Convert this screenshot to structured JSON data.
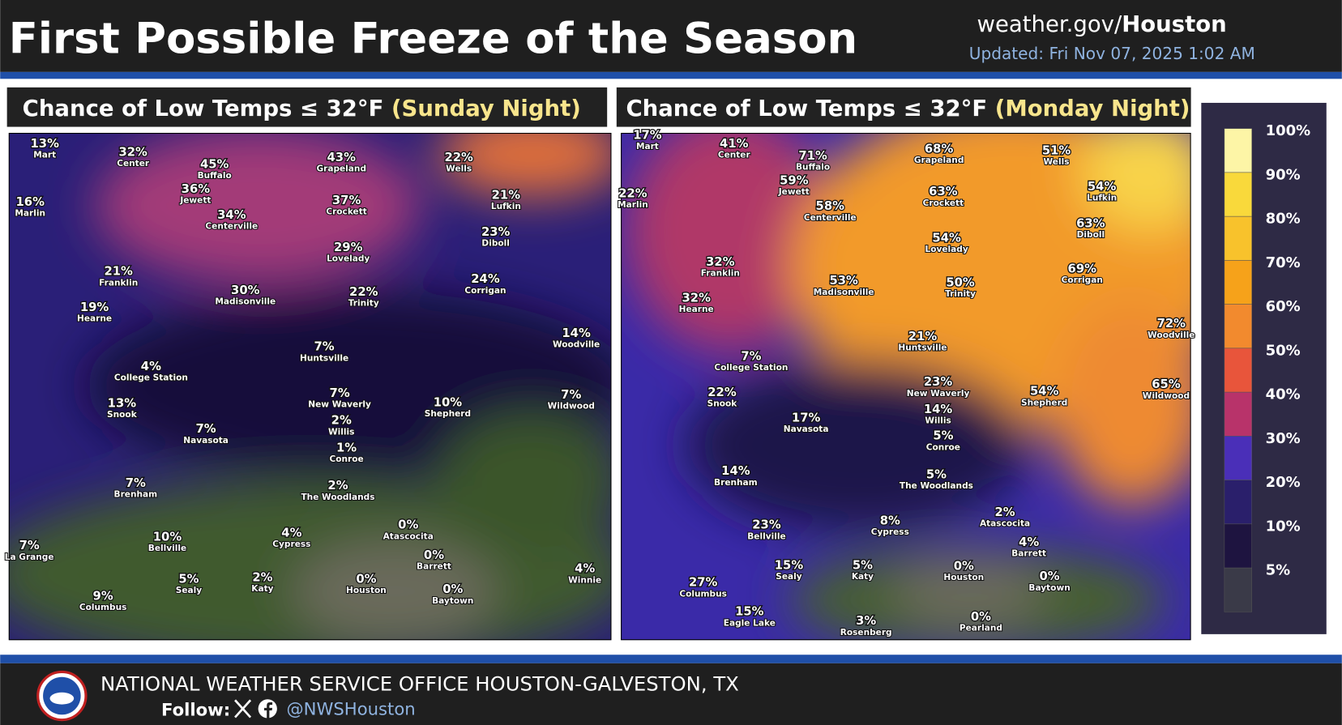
{
  "header": {
    "title": "First Possible Freeze of the Season",
    "site": "weather.gov/",
    "site_bold": "Houston",
    "updated": "Updated: Fri Nov 07, 2025 1:02 AM"
  },
  "panels": [
    {
      "title": "Chance of Low Temps ≤ 32°F",
      "period": "(Sunday Night)",
      "labels": [
        {
          "value": "13%",
          "place": "Mart"
        },
        {
          "value": "32%",
          "place": "Center"
        },
        {
          "value": "45%",
          "place": "Buffalo"
        },
        {
          "value": "43%",
          "place": "Grapeland"
        },
        {
          "value": "22%",
          "place": "Wells"
        },
        {
          "value": "36%",
          "place": "Jewett"
        },
        {
          "value": "16%",
          "place": "Marlin"
        },
        {
          "value": "37%",
          "place": "Crockett"
        },
        {
          "value": "21%",
          "place": "Lufkin"
        },
        {
          "value": "34%",
          "place": "Centerville"
        },
        {
          "value": "23%",
          "place": "Diboll"
        },
        {
          "value": "29%",
          "place": "Lovelady"
        },
        {
          "value": "21%",
          "place": "Franklin"
        },
        {
          "value": "24%",
          "place": "Corrigan"
        },
        {
          "value": "30%",
          "place": "Madisonville"
        },
        {
          "value": "22%",
          "place": "Trinity"
        },
        {
          "value": "19%",
          "place": "Hearne"
        },
        {
          "value": "14%",
          "place": "Woodville"
        },
        {
          "value": "7%",
          "place": "Huntsville"
        },
        {
          "value": "4%",
          "place": "College Station"
        },
        {
          "value": "7%",
          "place": "New Waverly"
        },
        {
          "value": "10%",
          "place": "Shepherd"
        },
        {
          "value": "7%",
          "place": "Wildwood"
        },
        {
          "value": "13%",
          "place": "Snook"
        },
        {
          "value": "2%",
          "place": "Willis"
        },
        {
          "value": "7%",
          "place": "Navasota"
        },
        {
          "value": "1%",
          "place": "Conroe"
        },
        {
          "value": "7%",
          "place": "Brenham"
        },
        {
          "value": "2%",
          "place": "The Woodlands"
        },
        {
          "value": "0%",
          "place": "Atascocita"
        },
        {
          "value": "4%",
          "place": "Cypress"
        },
        {
          "value": "10%",
          "place": "Bellville"
        },
        {
          "value": "0%",
          "place": "Barrett"
        },
        {
          "value": "2%",
          "place": "Katy"
        },
        {
          "value": "5%",
          "place": "Sealy"
        },
        {
          "value": "0%",
          "place": "Houston"
        },
        {
          "value": "4%",
          "place": "Winnie"
        },
        {
          "value": "0%",
          "place": "Baytown"
        },
        {
          "value": "9%",
          "place": "Columbus"
        },
        {
          "value": "7%",
          "place": "La Grange"
        }
      ]
    },
    {
      "title": "Chance of Low Temps ≤ 32°F",
      "period": "(Monday Night)",
      "labels": [
        {
          "value": "17%",
          "place": "Mart"
        },
        {
          "value": "41%",
          "place": "Center"
        },
        {
          "value": "71%",
          "place": "Buffalo"
        },
        {
          "value": "68%",
          "place": "Grapeland"
        },
        {
          "value": "51%",
          "place": "Wells"
        },
        {
          "value": "22%",
          "place": "Marlin"
        },
        {
          "value": "59%",
          "place": "Jewett"
        },
        {
          "value": "58%",
          "place": "Centerville"
        },
        {
          "value": "63%",
          "place": "Crockett"
        },
        {
          "value": "54%",
          "place": "Lufkin"
        },
        {
          "value": "63%",
          "place": "Diboll"
        },
        {
          "value": "54%",
          "place": "Lovelady"
        },
        {
          "value": "32%",
          "place": "Franklin"
        },
        {
          "value": "69%",
          "place": "Corrigan"
        },
        {
          "value": "53%",
          "place": "Madisonville"
        },
        {
          "value": "50%",
          "place": "Trinity"
        },
        {
          "value": "32%",
          "place": "Hearne"
        },
        {
          "value": "72%",
          "place": "Woodville"
        },
        {
          "value": "21%",
          "place": "Huntsville"
        },
        {
          "value": "7%",
          "place": "College Station"
        },
        {
          "value": "23%",
          "place": "New Waverly"
        },
        {
          "value": "54%",
          "place": "Shepherd"
        },
        {
          "value": "65%",
          "place": "Wildwood"
        },
        {
          "value": "22%",
          "place": "Snook"
        },
        {
          "value": "14%",
          "place": "Willis"
        },
        {
          "value": "17%",
          "place": "Navasota"
        },
        {
          "value": "5%",
          "place": "Conroe"
        },
        {
          "value": "14%",
          "place": "Brenham"
        },
        {
          "value": "5%",
          "place": "The Woodlands"
        },
        {
          "value": "2%",
          "place": "Atascocita"
        },
        {
          "value": "8%",
          "place": "Cypress"
        },
        {
          "value": "23%",
          "place": "Bellville"
        },
        {
          "value": "4%",
          "place": "Barrett"
        },
        {
          "value": "0%",
          "place": "Houston"
        },
        {
          "value": "15%",
          "place": "Sealy"
        },
        {
          "value": "5%",
          "place": "Katy"
        },
        {
          "value": "0%",
          "place": "Baytown"
        },
        {
          "value": "27%",
          "place": "Columbus"
        },
        {
          "value": "15%",
          "place": "Eagle Lake"
        },
        {
          "value": "3%",
          "place": "Rosenberg"
        },
        {
          "value": "0%",
          "place": "Pearland"
        }
      ]
    }
  ],
  "legend": {
    "labels": [
      "100%",
      "90%",
      "80%",
      "70%",
      "60%",
      "50%",
      "40%",
      "30%",
      "20%",
      "10%",
      "5%"
    ]
  },
  "footer": {
    "office": "NATIONAL WEATHER SERVICE OFFICE HOUSTON-GALVESTON, TX",
    "follow": "Follow:",
    "handle": "@NWSHouston"
  }
}
